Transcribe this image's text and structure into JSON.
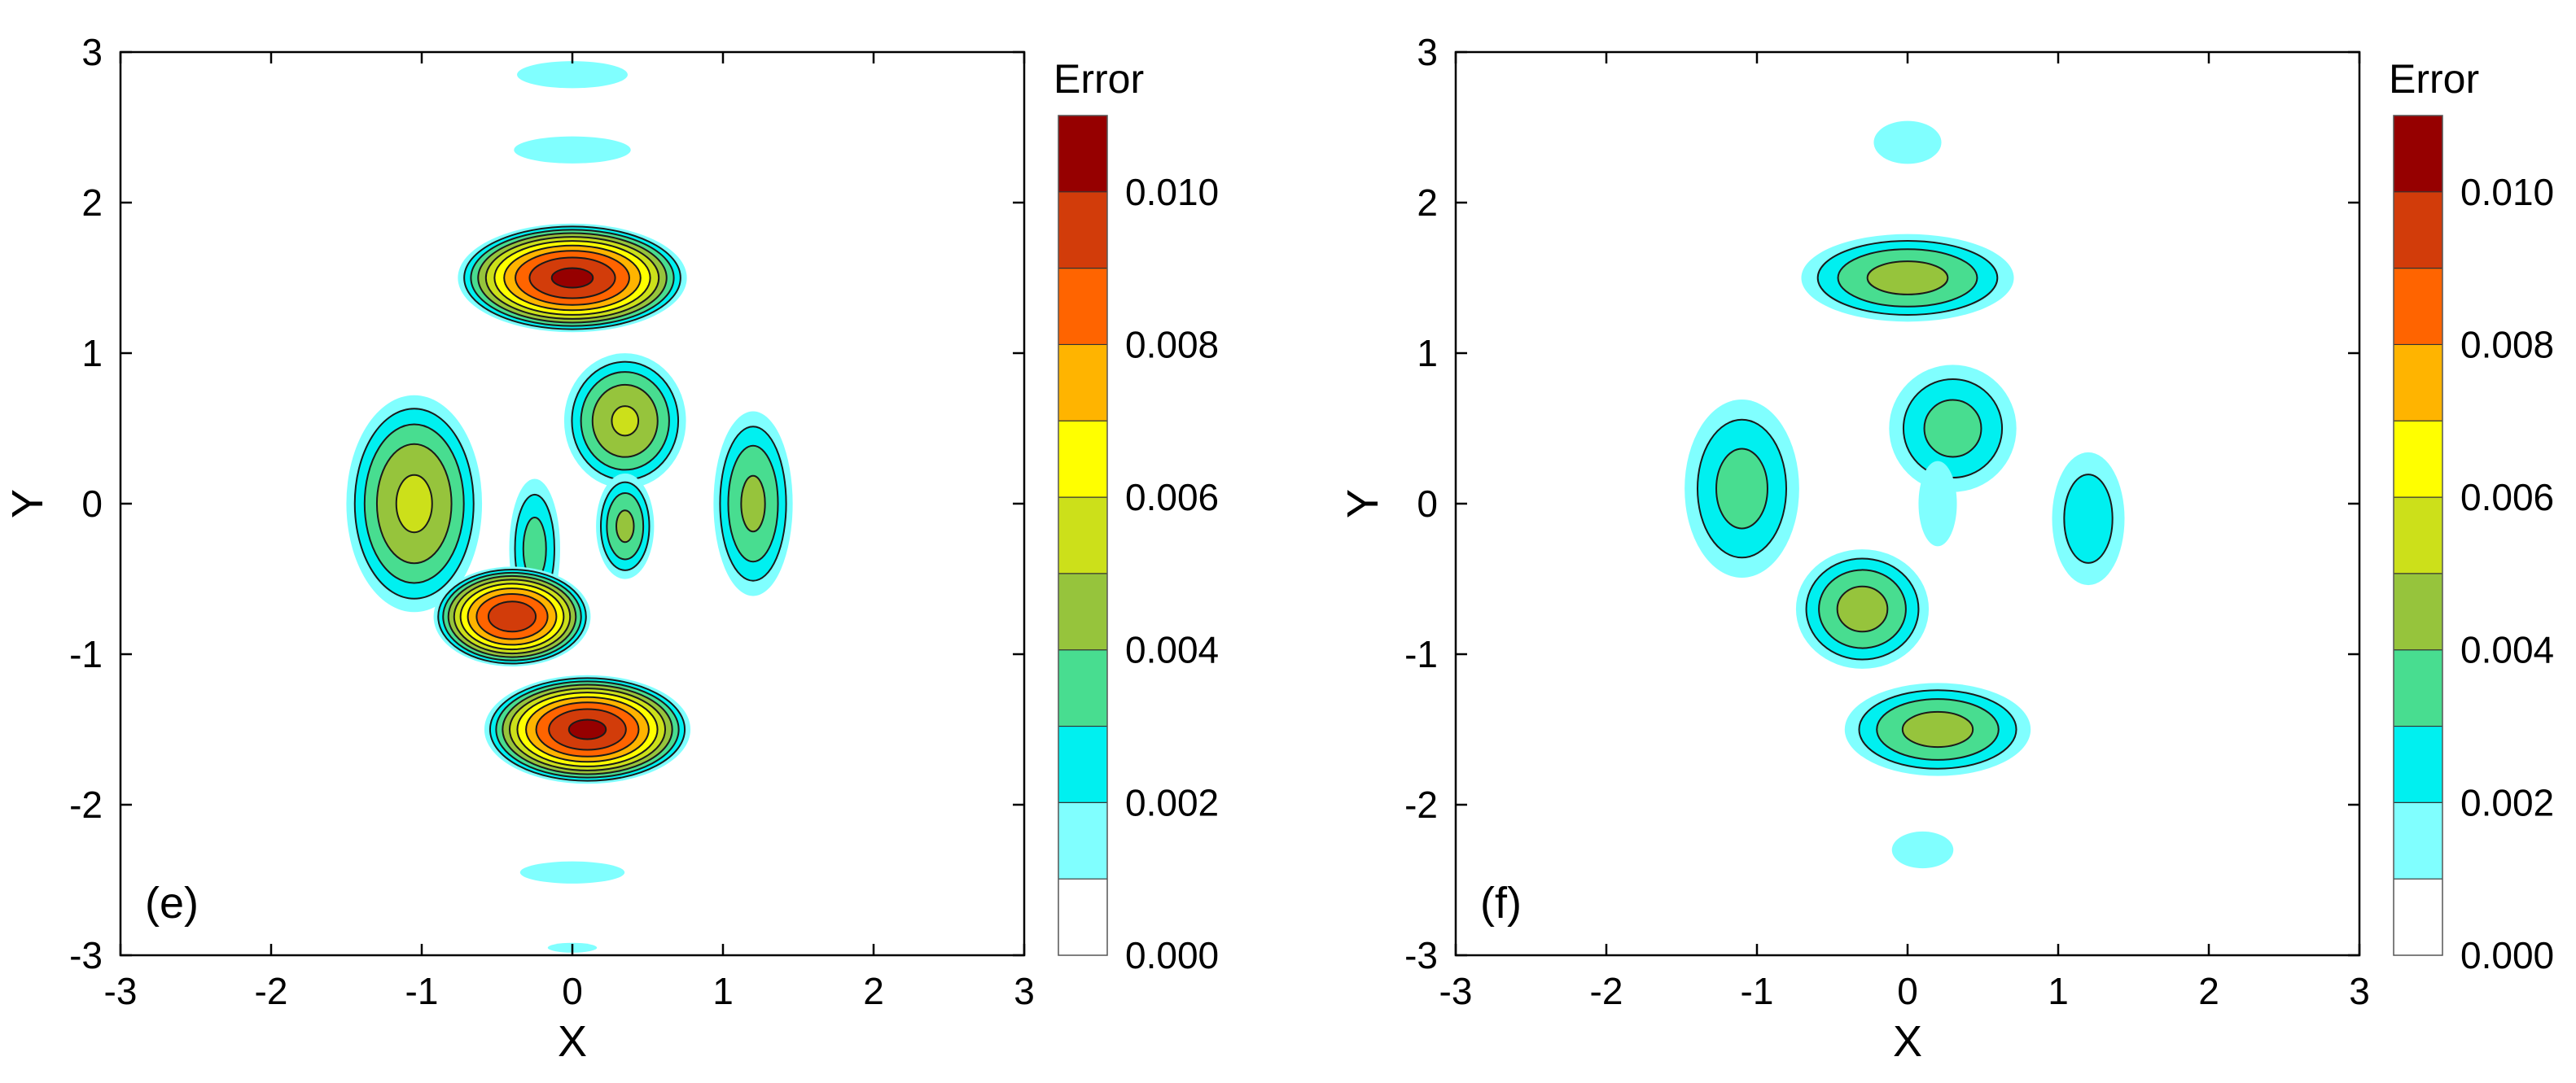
{
  "chart_data": [
    {
      "type": "heatmap",
      "panel_label": "(e)",
      "xlabel": "X",
      "ylabel": "Y",
      "xlim": [
        -3,
        3
      ],
      "ylim": [
        -3,
        3
      ],
      "x_ticks": [
        "-3",
        "-2",
        "-1",
        "0",
        "1",
        "2",
        "3"
      ],
      "y_ticks": [
        "-3",
        "-2",
        "-1",
        "0",
        "1",
        "2",
        "3"
      ],
      "colorbar": {
        "title": "Error",
        "range": [
          0,
          0.011
        ],
        "labels": [
          "0.000",
          "0.002",
          "0.004",
          "0.006",
          "0.008",
          "0.010"
        ],
        "label_values": [
          0,
          0.002,
          0.004,
          0.006,
          0.008,
          0.01
        ],
        "level_colors": [
          "#ffffff",
          "#80ffff",
          "#00f0f0",
          "#48dd90",
          "#96c43c",
          "#cce01a",
          "#ffff00",
          "#ffb400",
          "#ff6400",
          "#d23c0a",
          "#960000"
        ]
      },
      "features": [
        {
          "cx": 0.0,
          "cy": 2.85,
          "rx": 0.9,
          "ry": 0.22,
          "peak": 0.0012
        },
        {
          "cx": 0.0,
          "cy": 2.35,
          "rx": 0.95,
          "ry": 0.22,
          "peak": 0.0012
        },
        {
          "cx": 0.0,
          "cy": 1.5,
          "rx": 0.8,
          "ry": 0.38,
          "peak": 0.0103
        },
        {
          "cx": -1.05,
          "cy": 0.0,
          "rx": 0.5,
          "ry": 0.8,
          "peak": 0.0053
        },
        {
          "cx": 0.35,
          "cy": 0.55,
          "rx": 0.45,
          "ry": 0.5,
          "peak": 0.0052
        },
        {
          "cx": 0.35,
          "cy": -0.15,
          "rx": 0.22,
          "ry": 0.4,
          "peak": 0.0043
        },
        {
          "cx": 1.2,
          "cy": 0.0,
          "rx": 0.3,
          "ry": 0.7,
          "peak": 0.0043
        },
        {
          "cx": -0.25,
          "cy": -0.3,
          "rx": 0.2,
          "ry": 0.55,
          "peak": 0.0035
        },
        {
          "cx": -0.4,
          "cy": -0.75,
          "rx": 0.55,
          "ry": 0.35,
          "peak": 0.0098
        },
        {
          "cx": 0.1,
          "cy": -1.5,
          "rx": 0.72,
          "ry": 0.38,
          "peak": 0.0103
        },
        {
          "cx": 0.0,
          "cy": -2.45,
          "rx": 0.85,
          "ry": 0.18,
          "peak": 0.0012
        },
        {
          "cx": 0.0,
          "cy": -2.95,
          "rx": 0.4,
          "ry": 0.08,
          "peak": 0.0012
        }
      ]
    },
    {
      "type": "heatmap",
      "panel_label": "(f)",
      "xlabel": "X",
      "ylabel": "Y",
      "xlim": [
        -3,
        3
      ],
      "ylim": [
        -3,
        3
      ],
      "x_ticks": [
        "-3",
        "-2",
        "-1",
        "0",
        "1",
        "2",
        "3"
      ],
      "y_ticks": [
        "-3",
        "-2",
        "-1",
        "0",
        "1",
        "2",
        "3"
      ],
      "colorbar": {
        "title": "Error",
        "range": [
          0,
          0.011
        ],
        "labels": [
          "0.000",
          "0.002",
          "0.004",
          "0.006",
          "0.008",
          "0.010"
        ],
        "label_values": [
          0,
          0.002,
          0.004,
          0.006,
          0.008,
          0.01
        ],
        "level_colors": [
          "#ffffff",
          "#80ffff",
          "#00f0f0",
          "#48dd90",
          "#96c43c",
          "#cce01a",
          "#ffff00",
          "#ffb400",
          "#ff6400",
          "#d23c0a",
          "#960000"
        ]
      },
      "features": [
        {
          "cx": 0.0,
          "cy": 2.4,
          "rx": 0.55,
          "ry": 0.35,
          "peak": 0.0012
        },
        {
          "cx": 0.0,
          "cy": 1.5,
          "rx": 0.8,
          "ry": 0.33,
          "peak": 0.0045
        },
        {
          "cx": -1.1,
          "cy": 0.1,
          "rx": 0.45,
          "ry": 0.7,
          "peak": 0.0035
        },
        {
          "cx": 0.3,
          "cy": 0.5,
          "rx": 0.5,
          "ry": 0.5,
          "peak": 0.0035
        },
        {
          "cx": 0.2,
          "cy": 0.0,
          "rx": 0.18,
          "ry": 0.4,
          "peak": 0.002
        },
        {
          "cx": 1.2,
          "cy": -0.1,
          "rx": 0.3,
          "ry": 0.55,
          "peak": 0.0028
        },
        {
          "cx": -0.3,
          "cy": -0.7,
          "rx": 0.5,
          "ry": 0.45,
          "peak": 0.0045
        },
        {
          "cx": 0.2,
          "cy": -1.5,
          "rx": 0.7,
          "ry": 0.35,
          "peak": 0.0045
        },
        {
          "cx": 0.1,
          "cy": -2.3,
          "rx": 0.5,
          "ry": 0.3,
          "peak": 0.0012
        }
      ]
    }
  ]
}
